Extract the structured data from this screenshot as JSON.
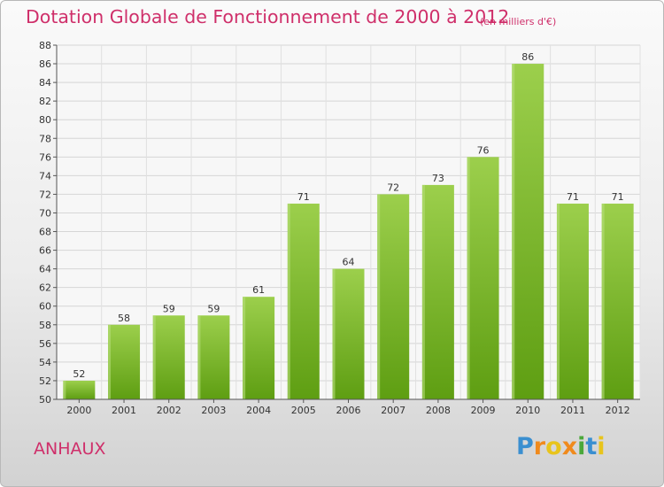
{
  "header": {
    "title": "Dotation Globale de Fonctionnement de 2000 à 2012",
    "subtitle": "(en milliers d'€)"
  },
  "footer": {
    "commune": "ANHAUX",
    "brand": "Proxiti"
  },
  "chart_data": {
    "type": "bar",
    "title": "Dotation Globale de Fonctionnement de 2000 à 2012",
    "subtitle": "(en milliers d'€)",
    "xlabel": "",
    "ylabel": "",
    "categories": [
      "2000",
      "2001",
      "2002",
      "2003",
      "2004",
      "2005",
      "2006",
      "2007",
      "2008",
      "2009",
      "2010",
      "2011",
      "2012"
    ],
    "values": [
      52,
      58,
      59,
      59,
      61,
      71,
      64,
      72,
      73,
      76,
      86,
      71,
      71
    ],
    "ylim": [
      50,
      88
    ],
    "yticks": [
      50,
      52,
      54,
      56,
      58,
      60,
      62,
      64,
      66,
      68,
      70,
      72,
      74,
      76,
      78,
      80,
      82,
      84,
      86,
      88
    ],
    "grid": true,
    "bar_color": "#8cc63f",
    "bar_color_dark": "#5e9e12"
  }
}
